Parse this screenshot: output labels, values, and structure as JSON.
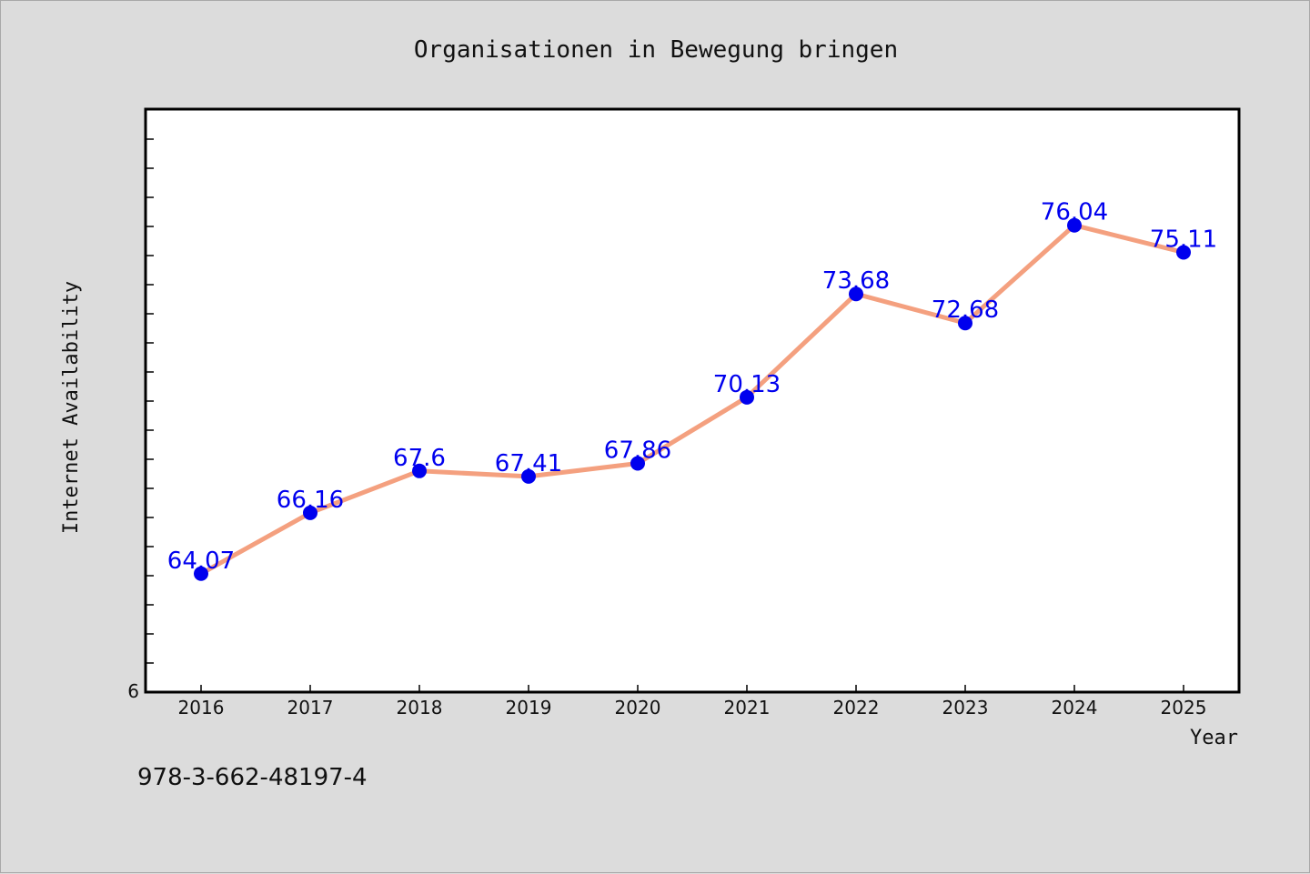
{
  "chart_data": {
    "type": "line",
    "title": "Organisationen in Bewegung bringen",
    "xlabel": "Year",
    "ylabel": "Internet Availability",
    "categories": [
      "2016",
      "2017",
      "2018",
      "2019",
      "2020",
      "2021",
      "2022",
      "2023",
      "2024",
      "2025"
    ],
    "values": [
      64.07,
      66.16,
      67.6,
      67.41,
      67.86,
      70.13,
      73.68,
      72.68,
      76.04,
      75.11
    ],
    "data_labels": [
      "64.07",
      "66.16",
      "67.6",
      "67.41",
      "67.86",
      "70.13",
      "73.68",
      "72.68",
      "76.04",
      "75.11"
    ],
    "ylim": [
      60,
      80
    ],
    "y_tick_labels": [
      "6"
    ],
    "line_color": "#f4a07f",
    "marker_color": "#0000ee",
    "label_color": "#0000ee",
    "grid": false
  },
  "caption": "978-3-662-48197-4"
}
